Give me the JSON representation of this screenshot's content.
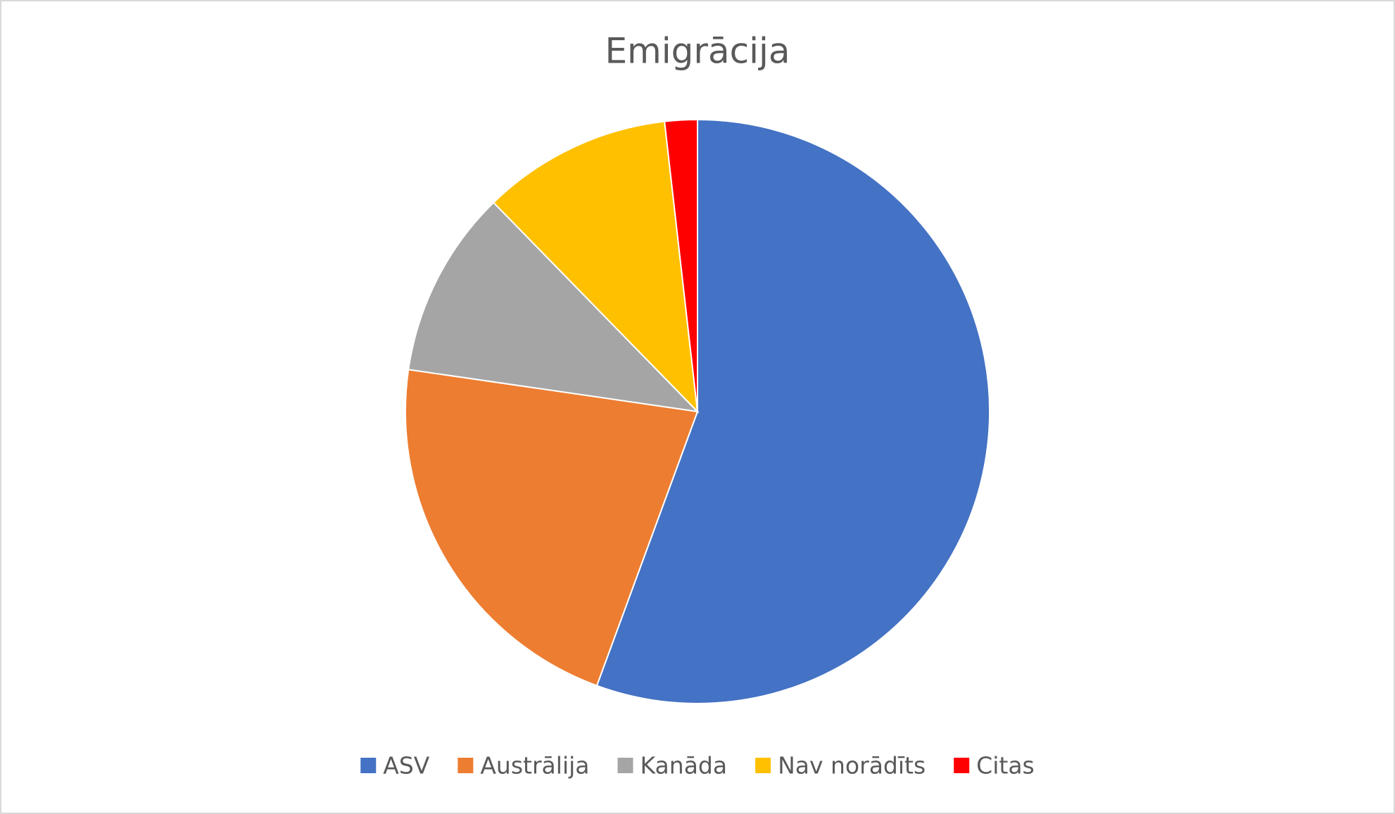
{
  "chart_data": {
    "type": "pie",
    "title": "Emigrācija",
    "categories": [
      "ASV",
      "Austrālija",
      "Kanāda",
      "Nav norādīts",
      "Citas"
    ],
    "values": [
      55.6,
      21.7,
      10.4,
      10.5,
      1.8
    ],
    "colors": [
      "#4472c4",
      "#ed7d31",
      "#a5a5a5",
      "#ffc000",
      "#ff0000"
    ],
    "legend": "bottom"
  }
}
